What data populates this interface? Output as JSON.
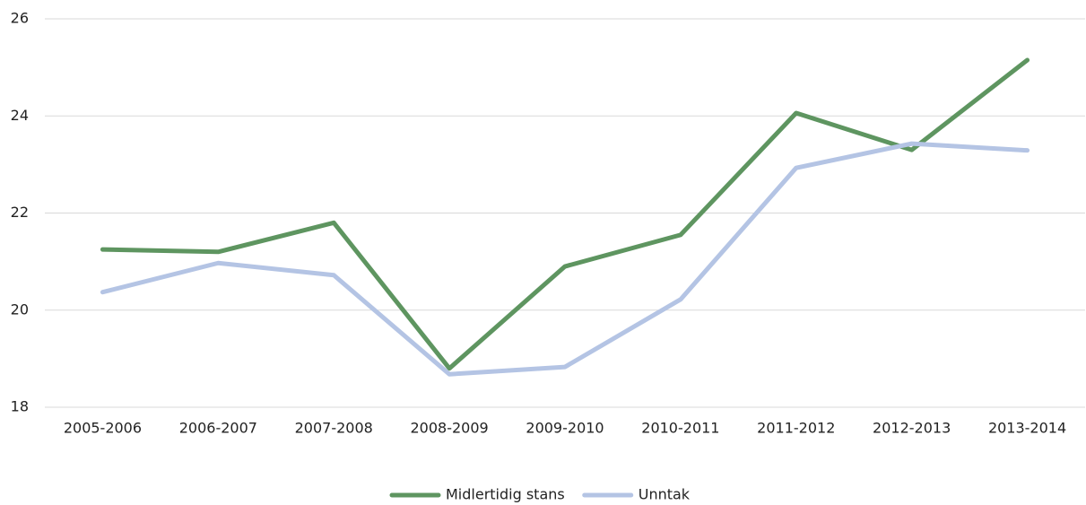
{
  "chart_data": {
    "type": "line",
    "categories": [
      "2005-2006",
      "2006-2007",
      "2007-2008",
      "2008-2009",
      "2009-2010",
      "2010-2011",
      "2011-2012",
      "2012-2013",
      "2013-2014"
    ],
    "series": [
      {
        "name": "Midlertidig stans",
        "color": "#5e9560",
        "values": [
          21.25,
          21.2,
          21.8,
          18.8,
          20.9,
          21.55,
          24.06,
          23.3,
          25.15
        ]
      },
      {
        "name": "Unntak",
        "color": "#b4c4e4",
        "values": [
          20.37,
          20.97,
          20.72,
          18.68,
          18.83,
          20.22,
          22.93,
          23.43,
          23.29
        ]
      }
    ],
    "ylim": [
      18,
      26
    ],
    "yticks": [
      18,
      20,
      22,
      24,
      26
    ],
    "grid": true,
    "legend": "bottom"
  }
}
